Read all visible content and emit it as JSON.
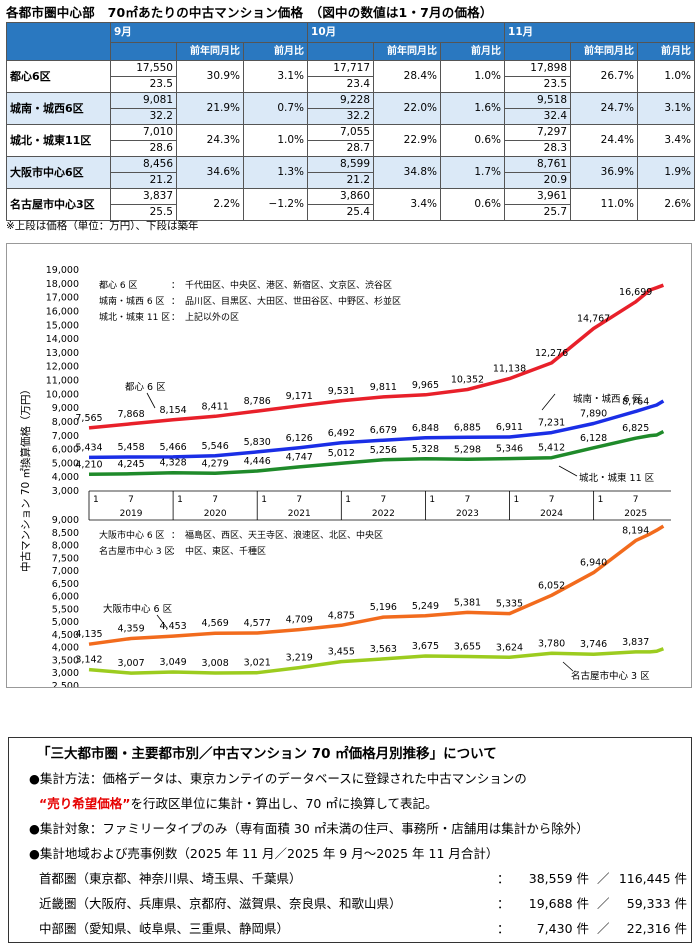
{
  "title": "各都市圏中心部　70㎡あたりの中古マンション価格　（図中の数値は1・7月の価格）",
  "table": {
    "months": [
      "9月",
      "10月",
      "11月"
    ],
    "sub_headers": [
      "前年同月比",
      "前月比"
    ],
    "rows": [
      {
        "name": "都心6区",
        "cells": [
          {
            "price": "17,550",
            "age": "23.5",
            "yoy": "30.9%",
            "mom": "3.1%"
          },
          {
            "price": "17,717",
            "age": "23.4",
            "yoy": "28.4%",
            "mom": "1.0%"
          },
          {
            "price": "17,898",
            "age": "23.5",
            "yoy": "26.7%",
            "mom": "1.0%"
          }
        ]
      },
      {
        "name": "城南・城西6区",
        "cells": [
          {
            "price": "9,081",
            "age": "32.2",
            "yoy": "21.9%",
            "mom": "0.7%"
          },
          {
            "price": "9,228",
            "age": "32.2",
            "yoy": "22.0%",
            "mom": "1.6%"
          },
          {
            "price": "9,518",
            "age": "32.4",
            "yoy": "24.7%",
            "mom": "3.1%"
          }
        ]
      },
      {
        "name": "城北・城東11区",
        "cells": [
          {
            "price": "7,010",
            "age": "28.6",
            "yoy": "24.3%",
            "mom": "1.0%"
          },
          {
            "price": "7,055",
            "age": "28.7",
            "yoy": "22.9%",
            "mom": "0.6%"
          },
          {
            "price": "7,297",
            "age": "28.3",
            "yoy": "24.4%",
            "mom": "3.4%"
          }
        ]
      },
      {
        "name": "大阪市中心6区",
        "cells": [
          {
            "price": "8,456",
            "age": "21.2",
            "yoy": "34.6%",
            "mom": "1.3%"
          },
          {
            "price": "8,599",
            "age": "21.2",
            "yoy": "34.8%",
            "mom": "1.7%"
          },
          {
            "price": "8,761",
            "age": "20.9",
            "yoy": "36.9%",
            "mom": "1.9%"
          }
        ]
      },
      {
        "name": "名古屋市中心3区",
        "cells": [
          {
            "price": "3,837",
            "age": "25.5",
            "yoy": "2.2%",
            "mom": "−1.2%"
          },
          {
            "price": "3,860",
            "age": "25.4",
            "yoy": "3.4%",
            "mom": "0.6%"
          },
          {
            "price": "3,961",
            "age": "25.7",
            "yoy": "11.0%",
            "mom": "2.6%"
          }
        ]
      }
    ],
    "note": "※上段は価格（単位：万円）、下段は築年"
  },
  "chart_data": {
    "type": "line",
    "ylabel": "中古マンション 70 ㎡換算価格（万円）",
    "x_ticks": [
      "1",
      "7",
      "1",
      "7",
      "1",
      "7",
      "1",
      "7",
      "1",
      "7",
      "1",
      "7",
      "1",
      "7"
    ],
    "x_years": [
      "2019",
      "2020",
      "2021",
      "2022",
      "2023",
      "2024",
      "2025"
    ],
    "x_range": [
      2019.0,
      2025.92
    ],
    "upper": {
      "ylim": [
        3000,
        19000
      ],
      "yticks": [
        "19,000",
        "18,000",
        "17,000",
        "16,000",
        "15,000",
        "14,000",
        "13,000",
        "12,000",
        "11,000",
        "10,000",
        "9,000",
        "8,000",
        "7,000",
        "6,000",
        "5,000",
        "4,000",
        "3,000"
      ],
      "legend_lines": [
        {
          "name": "都心 6 区",
          "areas": "千代田区、中央区、港区、新宿区、文京区、渋谷区"
        },
        {
          "name": "城南・城西 6 区",
          "areas": "品川区、目黒区、大田区、世田谷区、中野区、杉並区"
        },
        {
          "name": "城北・城東 11 区",
          "areas": "上記以外の区"
        }
      ],
      "series": [
        {
          "name": "都心 6 区",
          "color": "#e8202a",
          "points": [
            [
              2019.0,
              7565
            ],
            [
              2019.5,
              7868
            ],
            [
              2020.0,
              8154
            ],
            [
              2020.5,
              8411
            ],
            [
              2021.0,
              8786
            ],
            [
              2021.5,
              9171
            ],
            [
              2022.0,
              9531
            ],
            [
              2022.5,
              9811
            ],
            [
              2023.0,
              9965
            ],
            [
              2023.5,
              10352
            ],
            [
              2024.0,
              11138
            ],
            [
              2024.5,
              12276
            ],
            [
              2025.0,
              14767
            ],
            [
              2025.5,
              16699
            ],
            [
              2025.67,
              17550
            ],
            [
              2025.75,
              17717
            ],
            [
              2025.83,
              17898
            ]
          ],
          "labels": [
            "7,565",
            "7,868",
            "8,154",
            "8,411",
            "8,786",
            "9,171",
            "9,531",
            "9,811",
            "9,965",
            "10,352",
            "11,138",
            "12,276",
            "14,767",
            "16,699"
          ]
        },
        {
          "name": "城南・城西 6 区",
          "color": "#1a2ee6",
          "points": [
            [
              2019.0,
              5434
            ],
            [
              2019.5,
              5458
            ],
            [
              2020.0,
              5466
            ],
            [
              2020.5,
              5546
            ],
            [
              2021.0,
              5830
            ],
            [
              2021.5,
              6126
            ],
            [
              2022.0,
              6492
            ],
            [
              2022.5,
              6679
            ],
            [
              2023.0,
              6848
            ],
            [
              2023.5,
              6885
            ],
            [
              2024.0,
              6911
            ],
            [
              2024.5,
              7231
            ],
            [
              2025.0,
              7890
            ],
            [
              2025.5,
              8764
            ],
            [
              2025.67,
              9081
            ],
            [
              2025.75,
              9228
            ],
            [
              2025.83,
              9518
            ]
          ],
          "labels": [
            "5,434",
            "5,458",
            "5,466",
            "5,546",
            "5,830",
            "6,126",
            "6,492",
            "6,679",
            "6,848",
            "6,885",
            "6,911",
            "7,231",
            "7,890",
            "8,764"
          ]
        },
        {
          "name": "城北・城東 11 区",
          "color": "#1f8a2a",
          "points": [
            [
              2019.0,
              4210
            ],
            [
              2019.5,
              4245
            ],
            [
              2020.0,
              4328
            ],
            [
              2020.5,
              4279
            ],
            [
              2021.0,
              4446
            ],
            [
              2021.5,
              4747
            ],
            [
              2022.0,
              5012
            ],
            [
              2022.5,
              5256
            ],
            [
              2023.0,
              5328
            ],
            [
              2023.5,
              5298
            ],
            [
              2024.0,
              5346
            ],
            [
              2024.5,
              5412
            ],
            [
              2025.0,
              6128
            ],
            [
              2025.5,
              6825
            ],
            [
              2025.67,
              7010
            ],
            [
              2025.75,
              7055
            ],
            [
              2025.83,
              7297
            ]
          ],
          "labels": [
            "4,210",
            "4,245",
            "4,328",
            "4,279",
            "4,446",
            "4,747",
            "5,012",
            "5,256",
            "5,328",
            "5,298",
            "5,346",
            "5,412",
            "6,128",
            "6,825"
          ]
        }
      ]
    },
    "lower": {
      "ylim": [
        2500,
        9000
      ],
      "yticks": [
        "9,000",
        "8,500",
        "8,000",
        "7,500",
        "7,000",
        "6,500",
        "6,000",
        "5,500",
        "5,000",
        "4,500",
        "4,000",
        "3,500",
        "3,000",
        "2,500"
      ],
      "legend_lines": [
        {
          "name": "大阪市中心 6 区",
          "areas": "福島区、西区、天王寺区、浪速区、北区、中央区"
        },
        {
          "name": "名古屋市中心 3 区",
          "areas": "中区、東区、千種区"
        }
      ],
      "series": [
        {
          "name": "大阪市中心 6 区",
          "color": "#f26b1d",
          "points": [
            [
              2019.0,
              4135
            ],
            [
              2019.5,
              4359
            ],
            [
              2020.0,
              4453
            ],
            [
              2020.5,
              4569
            ],
            [
              2021.0,
              4577
            ],
            [
              2021.5,
              4709
            ],
            [
              2022.0,
              4875
            ],
            [
              2022.5,
              5196
            ],
            [
              2023.0,
              5249
            ],
            [
              2023.5,
              5381
            ],
            [
              2024.0,
              5335
            ],
            [
              2024.5,
              6052
            ],
            [
              2025.0,
              6940
            ],
            [
              2025.5,
              8194
            ],
            [
              2025.67,
              8456
            ],
            [
              2025.75,
              8599
            ],
            [
              2025.83,
              8761
            ]
          ],
          "labels": [
            "4,135",
            "4,359",
            "4,453",
            "4,569",
            "4,577",
            "4,709",
            "4,875",
            "5,196",
            "5,249",
            "5,381",
            "5,335",
            "6,052",
            "6,940",
            "8,194"
          ]
        },
        {
          "name": "名古屋市中心 3 区",
          "color": "#9ccc1f",
          "points": [
            [
              2019.0,
              3142
            ],
            [
              2019.5,
              3007
            ],
            [
              2020.0,
              3049
            ],
            [
              2020.5,
              3008
            ],
            [
              2021.0,
              3021
            ],
            [
              2021.5,
              3219
            ],
            [
              2022.0,
              3455
            ],
            [
              2022.5,
              3563
            ],
            [
              2023.0,
              3675
            ],
            [
              2023.5,
              3655
            ],
            [
              2024.0,
              3624
            ],
            [
              2024.5,
              3780
            ],
            [
              2025.0,
              3746
            ],
            [
              2025.5,
              3837
            ],
            [
              2025.67,
              3837
            ],
            [
              2025.75,
              3860
            ],
            [
              2025.83,
              3961
            ]
          ],
          "labels": [
            "3,142",
            "3,007",
            "3,049",
            "3,008",
            "3,021",
            "3,219",
            "3,455",
            "3,563",
            "3,675",
            "3,655",
            "3,624",
            "3,780",
            "3,746",
            "3,837"
          ]
        }
      ]
    }
  },
  "about": {
    "heading": "「三大都市圏・主要都市別／中古マンション 70 ㎡価格月別推移」について",
    "method_label": "●集計方法：",
    "method_text1": "価格データは、東京カンテイのデータベースに登録された中古マンションの",
    "method_red": "“売り希望価格”",
    "method_text2": "を行政区単位に集計・算出し、70 ㎡に換算して表記。",
    "target": "●集計対象：ファミリータイプのみ（専有面積 30 ㎡未満の住戸、事務所・店舗用は集計から除外）",
    "area": "●集計地域および売事例数（2025 年 11 月／2025 年 9 月～2025 年 11 月合計）",
    "regions": [
      {
        "name": "首都圏（東京都、神奈川県、埼玉県、千葉県）",
        "n1": "38,559 件",
        "n2": "116,445 件"
      },
      {
        "name": "近畿圏（大阪府、兵庫県、京都府、滋賀県、奈良県、和歌山県）",
        "n1": "19,688 件",
        "n2": "59,333 件"
      },
      {
        "name": "中部圏（愛知県、岐阜県、三重県、静岡県）",
        "n1": "7,430 件",
        "n2": "22,316 件"
      }
    ],
    "colon": "：",
    "slash": "／"
  }
}
